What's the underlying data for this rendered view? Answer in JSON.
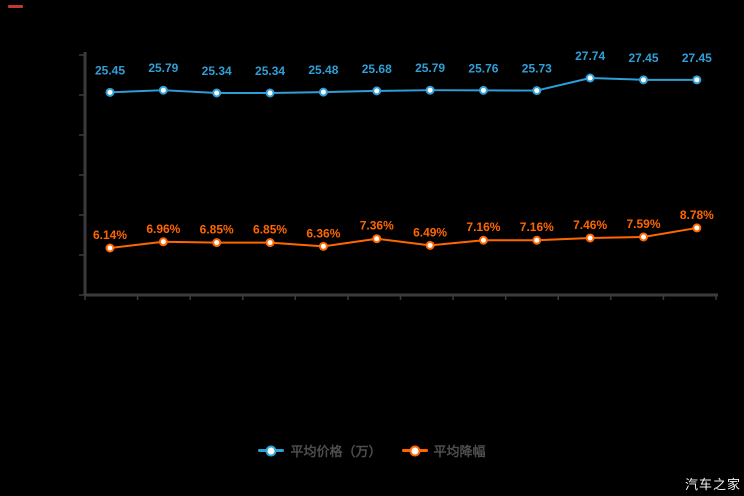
{
  "page": {
    "background_color": "#000000",
    "top_left_mark_color": "#c13a30"
  },
  "watermark": {
    "text": "汽车之家",
    "color": "#f5f5f5"
  },
  "legend": {
    "text_color": "#4d4d4d",
    "items": [
      {
        "label": "平均价格（万）",
        "color": "#2f9fd8"
      },
      {
        "label": "平均降幅",
        "color": "#ff6600"
      }
    ]
  },
  "chart_data": {
    "type": "line",
    "title": "",
    "categories": [
      "",
      "",
      "",
      "",
      "",
      "",
      "",
      "",
      "",
      "",
      "",
      ""
    ],
    "x_axis": {
      "tick_count": 13,
      "labels_visible": false
    },
    "y_axis": {
      "tick_count": 7,
      "labels_visible": false
    },
    "grid": false,
    "legend_position": "bottom",
    "axis_color": "#3b3b3b",
    "series": [
      {
        "name": "平均价格（万）",
        "color": "#2f9fd8",
        "values": [
          25.45,
          25.79,
          25.34,
          25.34,
          25.48,
          25.68,
          25.79,
          25.76,
          25.73,
          27.74,
          27.45,
          27.45
        ],
        "labels": [
          "25.45",
          "25.79",
          "25.34",
          "25.34",
          "25.48",
          "25.68",
          "25.79",
          "25.76",
          "25.73",
          "27.74",
          "27.45",
          "27.45"
        ]
      },
      {
        "name": "平均降幅",
        "color": "#ff6600",
        "unit": "%",
        "values": [
          6.14,
          6.96,
          6.85,
          6.85,
          6.36,
          7.36,
          6.49,
          7.16,
          7.16,
          7.46,
          7.59,
          8.78
        ],
        "labels": [
          "6.14%",
          "6.96%",
          "6.85%",
          "6.85%",
          "6.36%",
          "7.36%",
          "6.49%",
          "7.16%",
          "7.16%",
          "7.46%",
          "7.59%",
          "8.78%"
        ]
      }
    ]
  }
}
